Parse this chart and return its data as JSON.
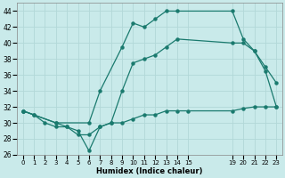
{
  "xlabel": "Humidex (Indice chaleur)",
  "xlim": [
    -0.5,
    23.5
  ],
  "ylim": [
    26,
    45
  ],
  "yticks": [
    26,
    28,
    30,
    32,
    34,
    36,
    38,
    40,
    42,
    44
  ],
  "bg_color": "#c9eaea",
  "grid_color": "#b2d8d8",
  "line_color": "#1a7a6e",
  "line1_x": [
    0,
    1,
    2,
    3,
    4,
    5,
    6,
    7,
    8,
    9,
    10,
    11,
    12,
    13,
    14,
    15,
    19,
    20,
    21,
    22,
    23
  ],
  "line1_y": [
    31.5,
    31.0,
    30.0,
    29.5,
    29.5,
    29.0,
    26.5,
    29.5,
    30.0,
    30.0,
    30.5,
    31.0,
    31.0,
    31.5,
    31.5,
    31.5,
    31.5,
    31.8,
    32.0,
    32.0,
    32.0
  ],
  "line2_x": [
    0,
    1,
    3,
    6,
    7,
    9,
    10,
    11,
    12,
    13,
    14,
    19,
    20,
    21,
    22,
    23
  ],
  "line2_y": [
    31.5,
    31.0,
    30.0,
    30.0,
    34.0,
    39.5,
    42.5,
    42.0,
    43.0,
    44.0,
    44.0,
    44.0,
    40.5,
    39.0,
    36.5,
    32.0
  ],
  "line3_x": [
    0,
    3,
    4,
    5,
    6,
    7,
    8,
    9,
    10,
    11,
    12,
    13,
    14,
    19,
    20,
    21,
    22,
    23
  ],
  "line3_y": [
    31.5,
    30.0,
    29.5,
    28.5,
    28.5,
    29.5,
    30.0,
    34.0,
    37.5,
    38.0,
    38.5,
    39.5,
    40.5,
    40.0,
    40.0,
    39.0,
    37.0,
    35.0
  ]
}
